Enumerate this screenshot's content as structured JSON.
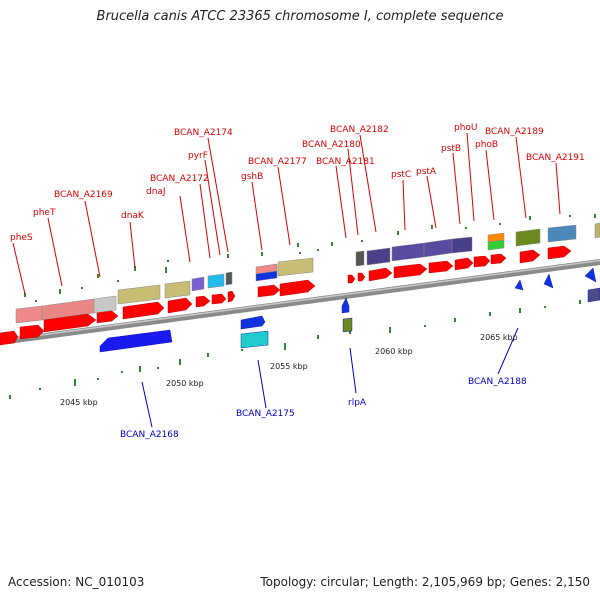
{
  "title": "Brucella canis ATCC 23365 chromosome I, complete sequence",
  "footer": {
    "accession": "Accession: NC_010103",
    "topology": "Topology: circular; Length: 2,105,969 bp; Genes: 2,150"
  },
  "colors": {
    "backbone": "#8a8a8a",
    "cds": "#ff0000",
    "minus_strand": "#0000ee",
    "label_top": "#dd0000",
    "label_bottom": "#0000cc",
    "tick": "#2e8b2e"
  },
  "scale_labels": [
    "2045 kbp",
    "2050 kbp",
    "2055 kbp",
    "2060 kbp",
    "2065 kbp"
  ],
  "top_labels": [
    "pheS",
    "pheT",
    "BCAN_A2169",
    "dnaK",
    "dnaJ",
    "BCAN_A2172",
    "pyrF",
    "BCAN_A2174",
    "gshB",
    "BCAN_A2177",
    "BCAN_A2180",
    "BCAN_A2181",
    "BCAN_A2182",
    "pstC",
    "pstA",
    "pstB",
    "phoU",
    "phoB",
    "BCAN_A2189",
    "BCAN_A2191"
  ],
  "bottom_labels": [
    "BCAN_A2168",
    "BCAN_A2175",
    "rlpA",
    "BCAN_A2188"
  ]
}
